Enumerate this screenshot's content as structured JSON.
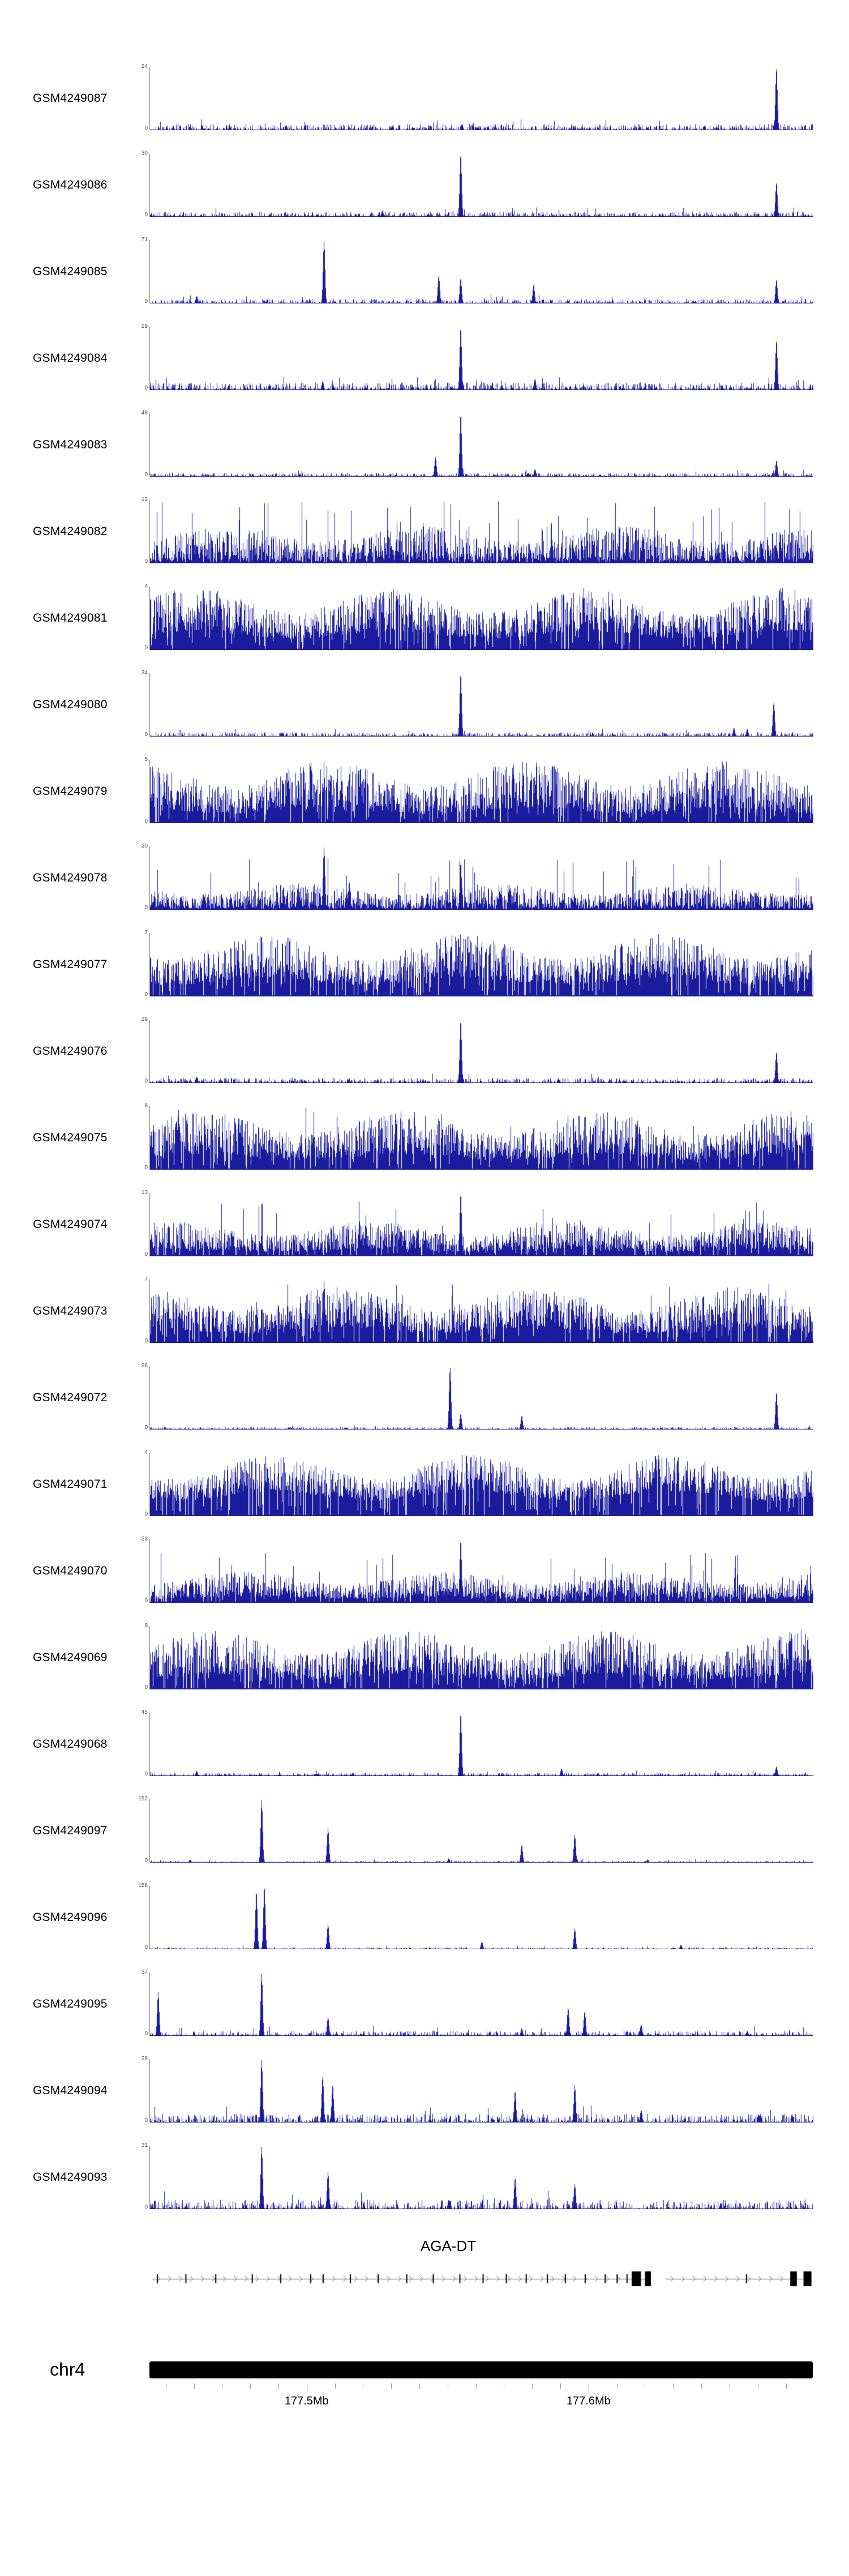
{
  "colors": {
    "signal": "#1b1b9e",
    "gene": "#000000"
  },
  "chart_data": {
    "type": "area",
    "description": "Genome browser coverage tracks",
    "region": {
      "chrom_label": "chr4",
      "major_ticks": [
        {
          "f": 0.237,
          "label": "177.5Mb"
        },
        {
          "f": 0.662,
          "label": "177.6Mb"
        }
      ],
      "minor_start": 0.0245,
      "minor_step": 0.0425
    },
    "gene": {
      "name": "AGA-DT",
      "strand": "right",
      "chevron_step": 0.0165,
      "segments": [
        {
          "start": 0.004,
          "end": 0.756
        },
        {
          "start": 0.778,
          "end": 0.998
        }
      ],
      "exon_ticks": [
        0.012,
        0.055,
        0.1,
        0.155,
        0.198,
        0.243,
        0.262,
        0.303,
        0.345,
        0.388,
        0.428,
        0.468,
        0.503,
        0.538,
        0.568,
        0.6,
        0.627,
        0.657,
        0.687,
        0.705,
        0.72,
        0.9
      ],
      "exon_blocks": [
        {
          "start": 0.727,
          "end": 0.741
        },
        {
          "start": 0.747,
          "end": 0.756
        },
        {
          "start": 0.966,
          "end": 0.976
        },
        {
          "start": 0.986,
          "end": 0.998
        }
      ]
    },
    "tracks": [
      {
        "label": "GSM4249087",
        "ymax": 24,
        "ymin": 0,
        "profile": "sparse",
        "seed": 101,
        "noise": 0.1,
        "spike_p": 0.02,
        "spike_h": 0.18,
        "peaks": [
          {
            "pos": 0.944,
            "h": 1.0
          },
          {
            "pos": 0.47,
            "h": 0.1
          },
          {
            "pos": 0.205,
            "h": 0.08
          }
        ]
      },
      {
        "label": "GSM4249086",
        "ymax": 30,
        "ymin": 0,
        "profile": "sparse",
        "seed": 102,
        "noise": 0.08,
        "spike_p": 0.015,
        "spike_h": 0.15,
        "peaks": [
          {
            "pos": 0.468,
            "h": 1.0
          },
          {
            "pos": 0.944,
            "h": 0.55
          },
          {
            "pos": 0.35,
            "h": 0.1
          }
        ]
      },
      {
        "label": "GSM4249085",
        "ymax": 71,
        "ymin": 0,
        "profile": "sparse",
        "seed": 103,
        "noise": 0.07,
        "spike_p": 0.015,
        "spike_h": 0.14,
        "peaks": [
          {
            "pos": 0.262,
            "h": 1.0
          },
          {
            "pos": 0.435,
            "h": 0.45
          },
          {
            "pos": 0.468,
            "h": 0.4
          },
          {
            "pos": 0.578,
            "h": 0.3
          },
          {
            "pos": 0.944,
            "h": 0.38
          },
          {
            "pos": 0.07,
            "h": 0.12
          }
        ]
      },
      {
        "label": "GSM4249084",
        "ymax": 29,
        "ymin": 0,
        "profile": "sparse",
        "seed": 104,
        "noise": 0.12,
        "spike_p": 0.03,
        "spike_h": 0.22,
        "peaks": [
          {
            "pos": 0.468,
            "h": 1.0
          },
          {
            "pos": 0.944,
            "h": 0.8
          },
          {
            "pos": 0.58,
            "h": 0.18
          },
          {
            "pos": 0.26,
            "h": 0.14
          }
        ]
      },
      {
        "label": "GSM4249083",
        "ymax": 48,
        "ymin": 0,
        "profile": "sparse",
        "seed": 105,
        "noise": 0.06,
        "spike_p": 0.012,
        "spike_h": 0.12,
        "peaks": [
          {
            "pos": 0.468,
            "h": 1.0
          },
          {
            "pos": 0.43,
            "h": 0.32
          },
          {
            "pos": 0.944,
            "h": 0.26
          },
          {
            "pos": 0.58,
            "h": 0.12
          }
        ]
      },
      {
        "label": "GSM4249082",
        "ymax": 13,
        "ymin": 0,
        "profile": "dense",
        "seed": 106,
        "base": 0.05,
        "amp": 0.55,
        "spike_p": 0.04,
        "spike_h": 1.0,
        "peaks": []
      },
      {
        "label": "GSM4249081",
        "ymax": 4,
        "ymin": 0,
        "profile": "dense",
        "seed": 107,
        "base": 0.3,
        "amp": 0.7,
        "spike_p": 0.0,
        "spike_h": 1.0,
        "peaks": []
      },
      {
        "label": "GSM4249080",
        "ymax": 34,
        "ymin": 0,
        "profile": "sparse",
        "seed": 108,
        "noise": 0.07,
        "spike_p": 0.015,
        "spike_h": 0.14,
        "peaks": [
          {
            "pos": 0.468,
            "h": 1.0
          },
          {
            "pos": 0.94,
            "h": 0.55
          },
          {
            "pos": 0.88,
            "h": 0.14
          },
          {
            "pos": 0.9,
            "h": 0.12
          }
        ]
      },
      {
        "label": "GSM4249079",
        "ymax": 5,
        "ymin": 0,
        "profile": "dense",
        "seed": 109,
        "base": 0.25,
        "amp": 0.75,
        "spike_p": 0.0,
        "spike_h": 1.0,
        "peaks": []
      },
      {
        "label": "GSM4249078",
        "ymax": 20,
        "ymin": 0,
        "profile": "dense",
        "seed": 110,
        "base": 0.04,
        "amp": 0.38,
        "spike_p": 0.025,
        "spike_h": 0.85,
        "peaks": [
          {
            "pos": 0.262,
            "h": 1.0
          },
          {
            "pos": 0.468,
            "h": 0.75
          },
          {
            "pos": 0.3,
            "h": 0.45
          }
        ]
      },
      {
        "label": "GSM4249077",
        "ymax": 7,
        "ymin": 0,
        "profile": "dense",
        "seed": 111,
        "base": 0.3,
        "amp": 0.7,
        "spike_p": 0.0,
        "spike_h": 1.0,
        "peaks": []
      },
      {
        "label": "GSM4249076",
        "ymax": 29,
        "ymin": 0,
        "profile": "sparse",
        "seed": 112,
        "noise": 0.08,
        "spike_p": 0.015,
        "spike_h": 0.15,
        "peaks": [
          {
            "pos": 0.468,
            "h": 1.0
          },
          {
            "pos": 0.944,
            "h": 0.5
          },
          {
            "pos": 0.07,
            "h": 0.1
          }
        ]
      },
      {
        "label": "GSM4249075",
        "ymax": 8,
        "ymin": 0,
        "profile": "dense",
        "seed": 113,
        "base": 0.25,
        "amp": 0.7,
        "spike_p": 0.01,
        "spike_h": 1.0,
        "peaks": []
      },
      {
        "label": "GSM4249074",
        "ymax": 13,
        "ymin": 0,
        "profile": "dense",
        "seed": 114,
        "base": 0.12,
        "amp": 0.45,
        "spike_p": 0.03,
        "spike_h": 0.9,
        "peaks": [
          {
            "pos": 0.468,
            "h": 1.0
          }
        ]
      },
      {
        "label": "GSM4249073",
        "ymax": 7,
        "ymin": 0,
        "profile": "dense",
        "seed": 115,
        "base": 0.25,
        "amp": 0.65,
        "spike_p": 0.02,
        "spike_h": 1.0,
        "peaks": [
          {
            "pos": 0.262,
            "h": 1.0
          }
        ]
      },
      {
        "label": "GSM4249072",
        "ymax": 96,
        "ymin": 0,
        "profile": "sparse",
        "seed": 116,
        "noise": 0.04,
        "spike_p": 0.01,
        "spike_h": 0.08,
        "peaks": [
          {
            "pos": 0.452,
            "h": 1.0
          },
          {
            "pos": 0.468,
            "h": 0.25
          },
          {
            "pos": 0.56,
            "h": 0.22
          },
          {
            "pos": 0.944,
            "h": 0.6
          }
        ]
      },
      {
        "label": "GSM4249071",
        "ymax": 4,
        "ymin": 0,
        "profile": "dense",
        "seed": 117,
        "base": 0.4,
        "amp": 0.6,
        "spike_p": 0.0,
        "spike_h": 1.0,
        "peaks": []
      },
      {
        "label": "GSM4249070",
        "ymax": 23,
        "ymin": 0,
        "profile": "dense",
        "seed": 118,
        "base": 0.1,
        "amp": 0.4,
        "spike_p": 0.03,
        "spike_h": 0.8,
        "peaks": [
          {
            "pos": 0.468,
            "h": 1.0
          }
        ]
      },
      {
        "label": "GSM4249069",
        "ymax": 8,
        "ymin": 0,
        "profile": "dense",
        "seed": 119,
        "base": 0.25,
        "amp": 0.7,
        "spike_p": 0.0,
        "spike_h": 1.0,
        "peaks": []
      },
      {
        "label": "GSM4249068",
        "ymax": 45,
        "ymin": 0,
        "profile": "sparse",
        "seed": 120,
        "noise": 0.05,
        "spike_p": 0.012,
        "spike_h": 0.1,
        "peaks": [
          {
            "pos": 0.468,
            "h": 1.0
          },
          {
            "pos": 0.62,
            "h": 0.12
          },
          {
            "pos": 0.944,
            "h": 0.15
          },
          {
            "pos": 0.07,
            "h": 0.08
          }
        ]
      },
      {
        "label": "GSM4249097",
        "ymax": 152,
        "ymin": 0,
        "profile": "peaky",
        "seed": 121,
        "noise": 0.03,
        "peaks": [
          {
            "pos": 0.168,
            "h": 1.0
          },
          {
            "pos": 0.268,
            "h": 0.55
          },
          {
            "pos": 0.56,
            "h": 0.28
          },
          {
            "pos": 0.64,
            "h": 0.45
          },
          {
            "pos": 0.45,
            "h": 0.07
          },
          {
            "pos": 0.06,
            "h": 0.05
          },
          {
            "pos": 0.75,
            "h": 0.05
          }
        ]
      },
      {
        "label": "GSM4249096",
        "ymax": 156,
        "ymin": 0,
        "profile": "peaky",
        "seed": 122,
        "noise": 0.03,
        "peaks": [
          {
            "pos": 0.16,
            "h": 0.92
          },
          {
            "pos": 0.172,
            "h": 1.0
          },
          {
            "pos": 0.268,
            "h": 0.4
          },
          {
            "pos": 0.5,
            "h": 0.12
          },
          {
            "pos": 0.64,
            "h": 0.33
          },
          {
            "pos": 0.8,
            "h": 0.07
          }
        ]
      },
      {
        "label": "GSM4249095",
        "ymax": 37,
        "ymin": 0,
        "profile": "peaky",
        "seed": 123,
        "noise": 0.08,
        "peaks": [
          {
            "pos": 0.012,
            "h": 0.7
          },
          {
            "pos": 0.168,
            "h": 1.0
          },
          {
            "pos": 0.268,
            "h": 0.3
          },
          {
            "pos": 0.63,
            "h": 0.45
          },
          {
            "pos": 0.655,
            "h": 0.4
          },
          {
            "pos": 0.74,
            "h": 0.18
          },
          {
            "pos": 0.56,
            "h": 0.12
          },
          {
            "pos": 0.9,
            "h": 0.08
          }
        ]
      },
      {
        "label": "GSM4249094",
        "ymax": 29,
        "ymin": 0,
        "profile": "peaky",
        "seed": 124,
        "noise": 0.14,
        "peaks": [
          {
            "pos": 0.168,
            "h": 1.0
          },
          {
            "pos": 0.26,
            "h": 0.75
          },
          {
            "pos": 0.275,
            "h": 0.6
          },
          {
            "pos": 0.55,
            "h": 0.5
          },
          {
            "pos": 0.64,
            "h": 0.6
          },
          {
            "pos": 0.74,
            "h": 0.2
          },
          {
            "pos": 0.92,
            "h": 0.12
          }
        ]
      },
      {
        "label": "GSM4249093",
        "ymax": 31,
        "ymin": 0,
        "profile": "peaky",
        "seed": 125,
        "noise": 0.15,
        "peaks": [
          {
            "pos": 0.168,
            "h": 1.0
          },
          {
            "pos": 0.268,
            "h": 0.6
          },
          {
            "pos": 0.55,
            "h": 0.5
          },
          {
            "pos": 0.64,
            "h": 0.4
          },
          {
            "pos": 0.45,
            "h": 0.15
          },
          {
            "pos": 0.86,
            "h": 0.1
          }
        ]
      }
    ]
  }
}
